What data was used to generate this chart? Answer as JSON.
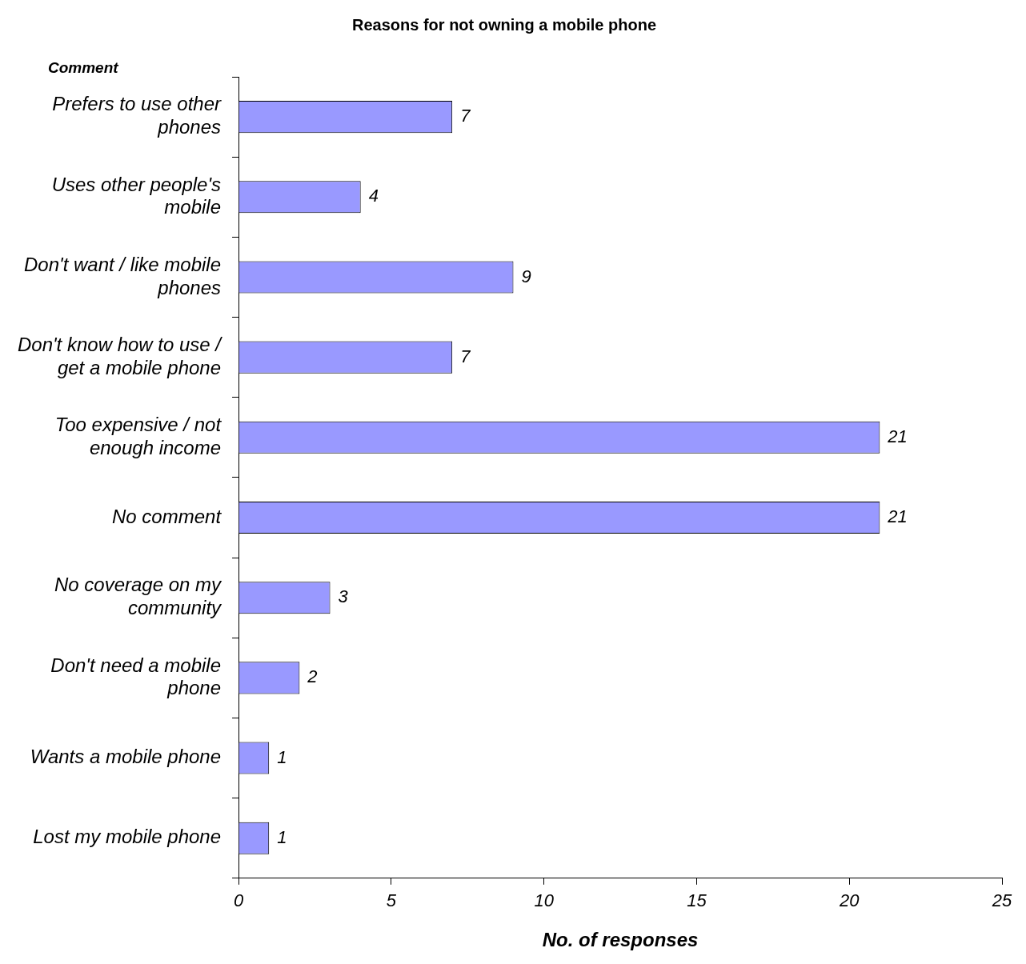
{
  "chart_data": {
    "type": "bar",
    "orientation": "horizontal",
    "title": "Reasons for not owning a mobile phone",
    "xlabel": "No. of responses",
    "ylabel": "Comment",
    "categories": [
      "Prefers to use other phones",
      "Uses other people's mobile",
      "Don't want / like mobile phones",
      "Don't know how to use / get a mobile phone",
      "Too expensive / not enough income",
      "No comment",
      "No coverage on my community",
      "Don't need a mobile phone",
      "Wants a mobile phone",
      "Lost my mobile phone"
    ],
    "values": [
      7,
      4,
      9,
      7,
      21,
      21,
      3,
      2,
      1,
      1
    ],
    "color": "#9999ff",
    "xlim": [
      0,
      25
    ],
    "xticks": [
      0,
      5,
      10,
      15,
      20,
      25
    ],
    "data_labels": true,
    "grid": false,
    "legend": false
  }
}
